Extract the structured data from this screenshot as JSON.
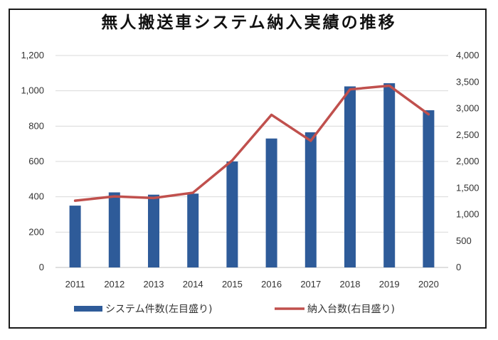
{
  "chart_data": {
    "type": "bar+line",
    "title": "無人搬送車システム納入実績の推移",
    "categories": [
      "2011",
      "2012",
      "2013",
      "2014",
      "2015",
      "2016",
      "2017",
      "2018",
      "2019",
      "2020"
    ],
    "series": [
      {
        "name": "システム件数(左目盛り)",
        "type": "bar",
        "axis": "left",
        "color": "#2e5b99",
        "values": [
          350,
          425,
          412,
          418,
          600,
          730,
          765,
          1025,
          1043,
          890
        ]
      },
      {
        "name": "納入台数(右目盛り)",
        "type": "line",
        "axis": "right",
        "color": "#c0504d",
        "values": [
          1260,
          1340,
          1310,
          1410,
          2020,
          2880,
          2390,
          3360,
          3430,
          2890
        ]
      }
    ],
    "y_left": {
      "ylim": [
        0,
        1200
      ],
      "ticks": [
        "0",
        "200",
        "400",
        "600",
        "800",
        "1,000",
        "1,200"
      ],
      "tick_values": [
        0,
        200,
        400,
        600,
        800,
        1000,
        1200
      ]
    },
    "y_right": {
      "ylim": [
        0,
        4000
      ],
      "ticks": [
        "0",
        "500",
        "1,000",
        "1,500",
        "2,000",
        "2,500",
        "3,000",
        "3,500",
        "4,000"
      ],
      "tick_values": [
        0,
        500,
        1000,
        1500,
        2000,
        2500,
        3000,
        3500,
        4000
      ]
    },
    "grid": true,
    "legend_position": "bottom"
  }
}
